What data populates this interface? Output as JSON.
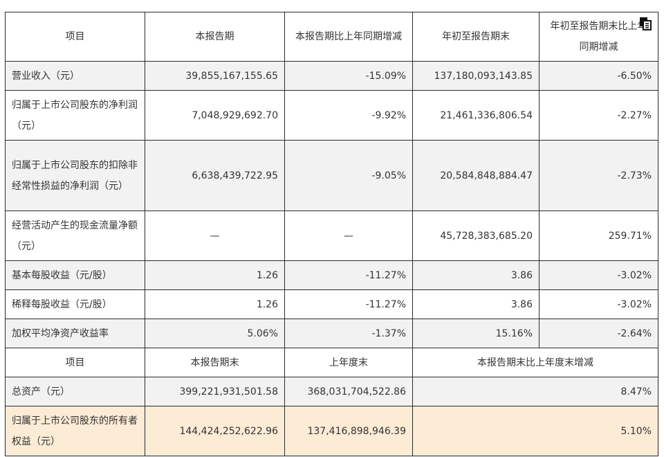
{
  "header": {
    "item": "项目",
    "current_period": "本报告期",
    "current_vs_prior": "本报告期比上年同期增减",
    "ytd": "年初至报告期末",
    "ytd_vs_prior_line1": "年初至报告期末比上年",
    "ytd_vs_prior_line2": "同期增减"
  },
  "rows": [
    {
      "item": "营业收入（元）",
      "current": "39,855,167,155.65",
      "change": "-15.09%",
      "ytd": "137,180,093,143.85",
      "ytd_change": "-6.50%"
    },
    {
      "item": "归属于上市公司股东的净利润（元）",
      "current": "7,048,929,692.70",
      "change": "-9.92%",
      "ytd": "21,461,336,806.54",
      "ytd_change": "-2.27%"
    },
    {
      "item": "归属于上市公司股东的扣除非经常性损益的净利润（元）",
      "current": "6,638,439,722.95",
      "change": "-9.05%",
      "ytd": "20,584,848,884.47",
      "ytd_change": "-2.73%"
    },
    {
      "item": "经营活动产生的现金流量净额（元）",
      "current": "—",
      "change": "—",
      "ytd": "45,728,383,685.20",
      "ytd_change": "259.71%"
    },
    {
      "item": "基本每股收益（元/股）",
      "current": "1.26",
      "change": "-11.27%",
      "ytd": "3.86",
      "ytd_change": "-3.02%"
    },
    {
      "item": "稀释每股收益（元/股）",
      "current": "1.26",
      "change": "-11.27%",
      "ytd": "3.86",
      "ytd_change": "-3.02%"
    },
    {
      "item": "加权平均净资产收益率",
      "current": "5.06%",
      "change": "-1.37%",
      "ytd": "15.16%",
      "ytd_change": "-2.64%"
    }
  ],
  "header2": {
    "item": "项目",
    "period_end": "本报告期末",
    "prior_year_end": "上年度末",
    "change_vs_prior_year_end": "本报告期末比上年度末增减"
  },
  "rows2": [
    {
      "item": "总资产（元）",
      "period_end": "399,221,931,501.58",
      "prior_year_end": "368,031,704,522.86",
      "change": "8.47%"
    },
    {
      "item": "归属于上市公司股东的所有者权益（元）",
      "period_end": "144,424,252,622.96",
      "prior_year_end": "137,416,898,946.39",
      "change": "5.10%"
    }
  ],
  "icons": {
    "copy": "copy-icon"
  }
}
